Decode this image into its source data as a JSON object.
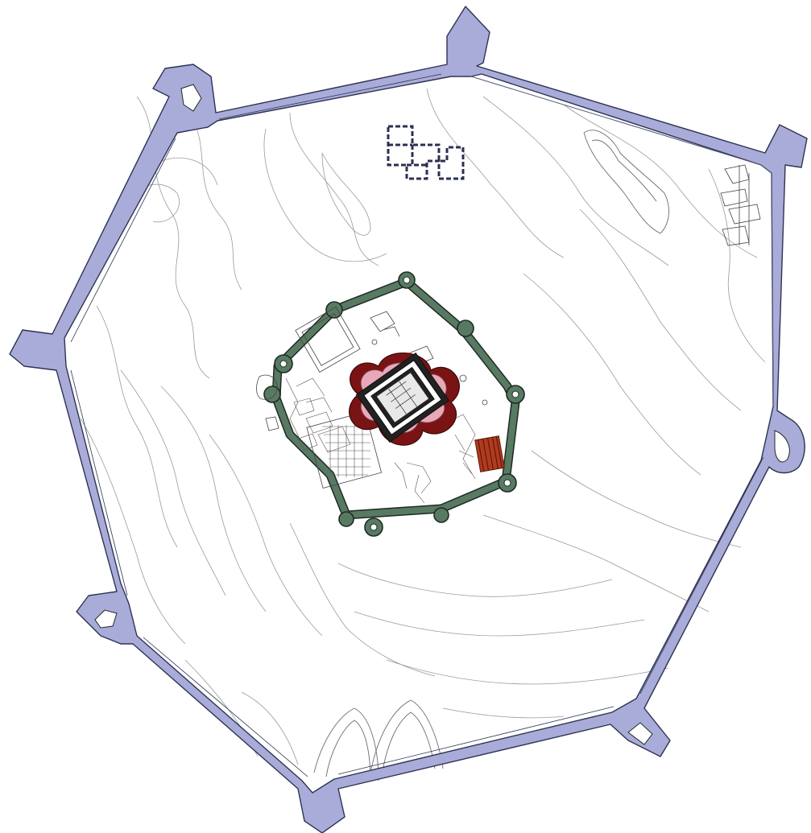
{
  "plan": {
    "colors": {
      "outer_ring": "#a9acd8",
      "middle_ring": "#587a63",
      "keep_red": "#7a1414",
      "keep_pink": "#e9a8b8",
      "brick_block": "#b33a1e",
      "building_outline": "#2b3052"
    },
    "elements": [
      "outer-fortification",
      "middle-fortification",
      "central-keep",
      "north-building",
      "east-ruins",
      "south-east-brick-structure",
      "terrain-contours"
    ]
  }
}
